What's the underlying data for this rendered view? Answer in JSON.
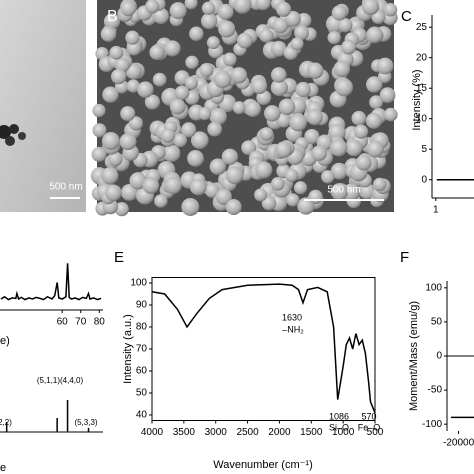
{
  "images": {
    "a": {
      "scale_label": "500 nm"
    },
    "b": {
      "label": "B",
      "scale_label": "500 nm"
    }
  },
  "chart_data": [
    {
      "type": "line",
      "label": "C",
      "ylabel": "Intensity (%)",
      "frame": "left-bottom",
      "xlim": [
        0.8,
        3
      ],
      "xticks": [
        1
      ],
      "ylim": [
        -3,
        27
      ],
      "yticks": [
        0,
        5,
        10,
        15,
        20,
        25
      ],
      "series": [
        {
          "color": "#000000",
          "x": [
            1.05,
            3
          ],
          "values": [
            0,
            0
          ]
        }
      ]
    },
    {
      "type": "line",
      "xlabel": "e)",
      "frame": "bottom",
      "xlim": [
        26.5,
        82
      ],
      "xticks": [
        60,
        70,
        80
      ],
      "ylim": [
        0,
        100
      ],
      "series": [
        {
          "color": "#000000",
          "x": [
            27,
            29,
            31,
            33,
            35,
            35.6,
            36.5,
            38,
            40,
            42,
            44,
            46,
            48,
            50,
            52,
            53.5,
            54.5,
            56,
            57.3,
            58.2,
            60,
            62,
            62.9,
            63.8,
            65,
            67,
            69,
            71,
            73,
            74.2,
            75,
            77,
            79,
            81
          ],
          "values": [
            20,
            24,
            19,
            22,
            21,
            30,
            20,
            23,
            19,
            22,
            20,
            23,
            21,
            19,
            24,
            22,
            20,
            26,
            50,
            22,
            20,
            24,
            85,
            23,
            20,
            22,
            19,
            23,
            21,
            30,
            20,
            22,
            19,
            21
          ]
        }
      ]
    },
    {
      "type": "stick",
      "xlabel": "e",
      "frame": "bottom",
      "color": "#000000",
      "xlim": [
        26.5,
        82
      ],
      "ylim": [
        0,
        100
      ],
      "x": [
        30.1,
        57.3,
        62.9,
        74.2
      ],
      "values": [
        25,
        35,
        80,
        10
      ],
      "peak_labels": [
        "2,2)",
        "(5,1,1)",
        "(4,4,0)",
        "(5,3,3)"
      ]
    },
    {
      "type": "line",
      "label": "E",
      "xlabel": "Wavenumber (cm⁻¹)",
      "ylabel": "Intensity (a.u.)",
      "frame": "box",
      "xlim": [
        4000,
        500
      ],
      "xticks": [
        4000,
        3500,
        3000,
        2500,
        2000,
        1500,
        1000,
        500
      ],
      "ylim": [
        37.5,
        102.5
      ],
      "yticks": [
        40,
        50,
        60,
        70,
        80,
        90,
        100
      ],
      "annotations": [
        "1630",
        "–NH₂",
        "1086",
        "Si–O",
        "570",
        "Fe–O"
      ],
      "series": [
        {
          "color": "#000000",
          "x": [
            4000,
            3800,
            3600,
            3450,
            3300,
            3100,
            2900,
            2500,
            2000,
            1800,
            1700,
            1630,
            1560,
            1400,
            1250,
            1150,
            1086,
            1000,
            950,
            900,
            850,
            800,
            750,
            700,
            650,
            600,
            570,
            500
          ],
          "values": [
            96,
            95,
            88,
            80,
            86,
            93,
            97,
            99,
            99.5,
            99,
            97,
            91,
            97,
            98,
            96,
            80,
            47,
            62,
            72,
            75,
            70,
            77,
            72,
            74,
            68,
            55,
            46,
            41
          ]
        }
      ]
    },
    {
      "type": "line",
      "label": "F",
      "ylabel": "Moment/Mass (emu/g)",
      "frame": "left",
      "xlim": [
        -23000,
        -16000
      ],
      "xticks": [
        -20000
      ],
      "ylim": [
        -110,
        110
      ],
      "yticks": [
        100,
        50,
        0,
        -50,
        -100
      ],
      "series": [
        {
          "color": "#000000",
          "x": [
            -22000,
            -16000
          ],
          "values": [
            -90,
            -90
          ]
        }
      ]
    }
  ]
}
